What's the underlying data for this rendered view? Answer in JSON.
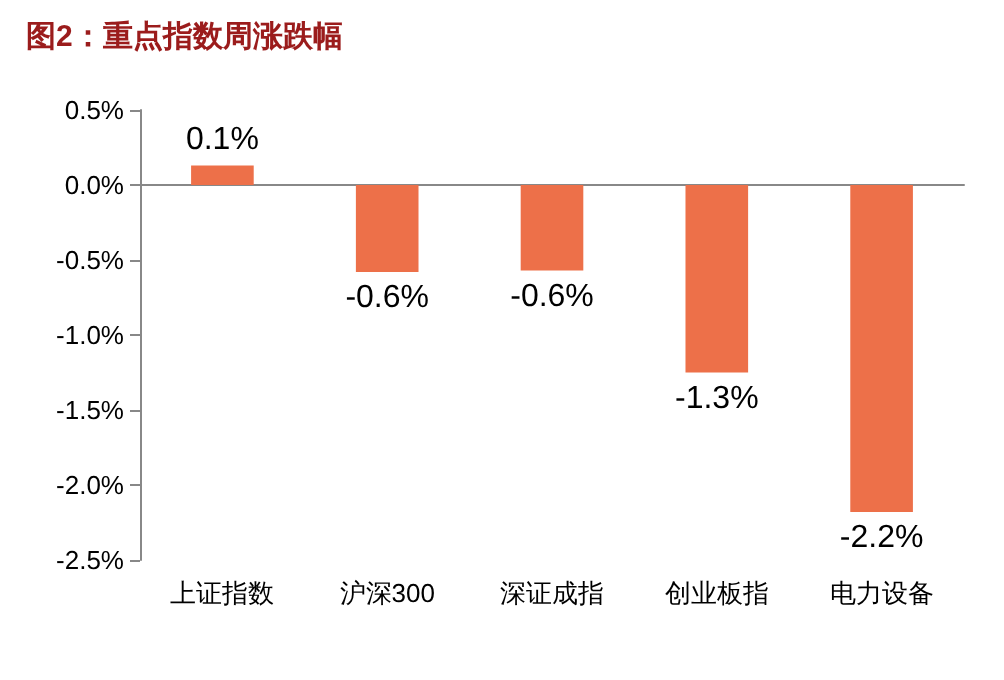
{
  "chart_data": {
    "type": "bar",
    "title": "图2：重点指数周涨跌幅",
    "categories": [
      "上证指数",
      "沪深300",
      "深证成指",
      "创业板指",
      "电力设备"
    ],
    "values": [
      0.13,
      -0.58,
      -0.57,
      -1.25,
      -2.18
    ],
    "value_labels": [
      "0.1%",
      "-0.6%",
      "-0.6%",
      "-1.3%",
      "-2.2%"
    ],
    "color": "#ed7049",
    "ylim": [
      -2.5,
      0.5
    ],
    "yticks": [
      {
        "value": -2.5,
        "label": "-2.5%"
      },
      {
        "value": -2,
        "label": "-2.0%"
      },
      {
        "value": -1.5,
        "label": "-1.5%"
      },
      {
        "value": -1,
        "label": "-1.0%"
      },
      {
        "value": -0.5,
        "label": "-0.5%"
      },
      {
        "value": 0,
        "label": "0.0%"
      },
      {
        "value": 0.5,
        "label": "0.5%"
      }
    ],
    "data_labels": false
  }
}
